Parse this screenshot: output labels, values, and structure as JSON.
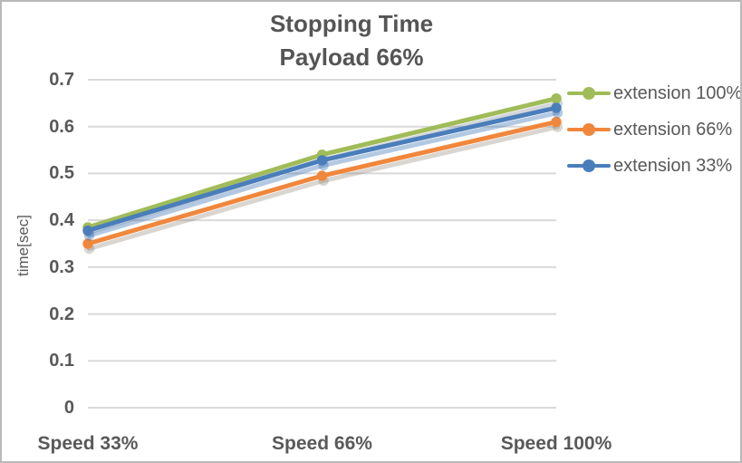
{
  "chart_data": {
    "type": "line",
    "title_line1": "Stopping Time",
    "title_line2": "Payload 66%",
    "ylabel": "time[sec]",
    "xlabel": "",
    "categories": [
      "Speed 33%",
      "Speed 66%",
      "Speed 100%"
    ],
    "series": [
      {
        "name": "extension 100%",
        "color": "#a0bc58",
        "shadow": "rgba(115,128,142,0.32)",
        "values": [
          0.385,
          0.54,
          0.66
        ]
      },
      {
        "name": "extension 66%",
        "color": "#f0873c",
        "shadow": "rgba(128,118,105,0.30)",
        "values": [
          0.35,
          0.495,
          0.61
        ]
      },
      {
        "name": "extension 33%",
        "color": "#4a7ebb",
        "shadow": "rgba(74,126,187,0.42)",
        "values": [
          0.378,
          0.528,
          0.64
        ]
      }
    ],
    "ylim": [
      0,
      0.7
    ],
    "yticks": [
      "0",
      "0.1",
      "0.2",
      "0.3",
      "0.4",
      "0.5",
      "0.6",
      "0.7"
    ],
    "grid": true,
    "gridline_color": "#d9d9d9",
    "legend_position": "right",
    "text_color": "#595959",
    "title_color": "#555555"
  }
}
